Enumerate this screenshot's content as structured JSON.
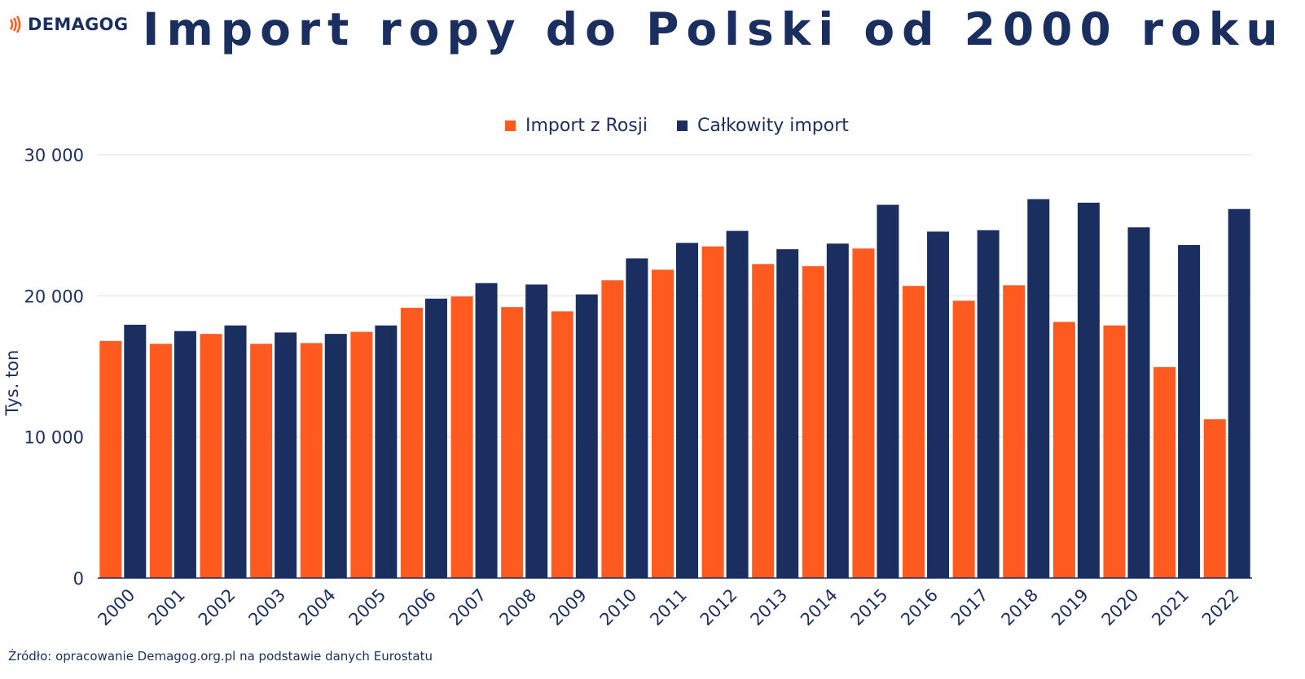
{
  "brand": {
    "name": "DEMAGOG",
    "accent": "#ff5a1f"
  },
  "source": "Źródło: opracowanie Demagog.org.pl na podstawie danych Eurostatu",
  "chart_data": {
    "type": "bar",
    "title": "Import ropy do Polski od 2000 roku",
    "ylabel": "Tys. ton",
    "xlabel": "",
    "ylim": [
      0,
      30000
    ],
    "yticks": [
      0,
      10000,
      20000,
      30000
    ],
    "ytick_labels": [
      "0",
      "10 000",
      "20 000",
      "30 000"
    ],
    "grid": true,
    "legend_position": "top-center",
    "categories": [
      "2000",
      "2001",
      "2002",
      "2003",
      "2004",
      "2005",
      "2006",
      "2007",
      "2008",
      "2009",
      "2010",
      "2011",
      "2012",
      "2013",
      "2014",
      "2015",
      "2016",
      "2017",
      "2018",
      "2019",
      "2020",
      "2021",
      "2022"
    ],
    "series": [
      {
        "name": "Import z Rosji",
        "color": "#ff5a1f",
        "values": [
          16800,
          16600,
          17300,
          16600,
          16650,
          17450,
          19150,
          19950,
          19200,
          18900,
          21100,
          21850,
          23500,
          22250,
          22100,
          23350,
          20700,
          19650,
          20750,
          18150,
          17900,
          14950,
          11250
        ]
      },
      {
        "name": "Całkowity import",
        "color": "#1a2f5f",
        "values": [
          17950,
          17500,
          17900,
          17400,
          17300,
          17900,
          19800,
          20900,
          20800,
          20100,
          22650,
          23750,
          24600,
          23300,
          23700,
          26450,
          24550,
          24650,
          26850,
          26600,
          24850,
          23600,
          26150
        ]
      }
    ]
  }
}
